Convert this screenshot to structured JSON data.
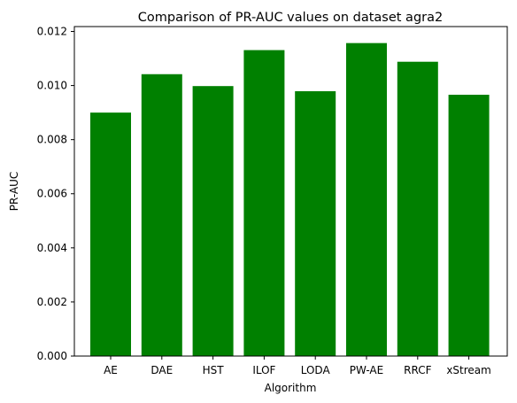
{
  "chart_data": {
    "type": "bar",
    "title": "Comparison of PR-AUC values on dataset agra2",
    "xlabel": "Algorithm",
    "ylabel": "PR-AUC",
    "categories": [
      "AE",
      "DAE",
      "HST",
      "ILOF",
      "LODA",
      "PW-AE",
      "RRCF",
      "xStream"
    ],
    "values": [
      0.009,
      0.01042,
      0.00998,
      0.01131,
      0.00979,
      0.01157,
      0.01088,
      0.00966
    ],
    "ylim": [
      0,
      0.01218
    ],
    "yticks": [
      "0.000",
      "0.002",
      "0.004",
      "0.006",
      "0.008",
      "0.010",
      "0.012"
    ],
    "bar_color": "#008000",
    "grid": false
  }
}
